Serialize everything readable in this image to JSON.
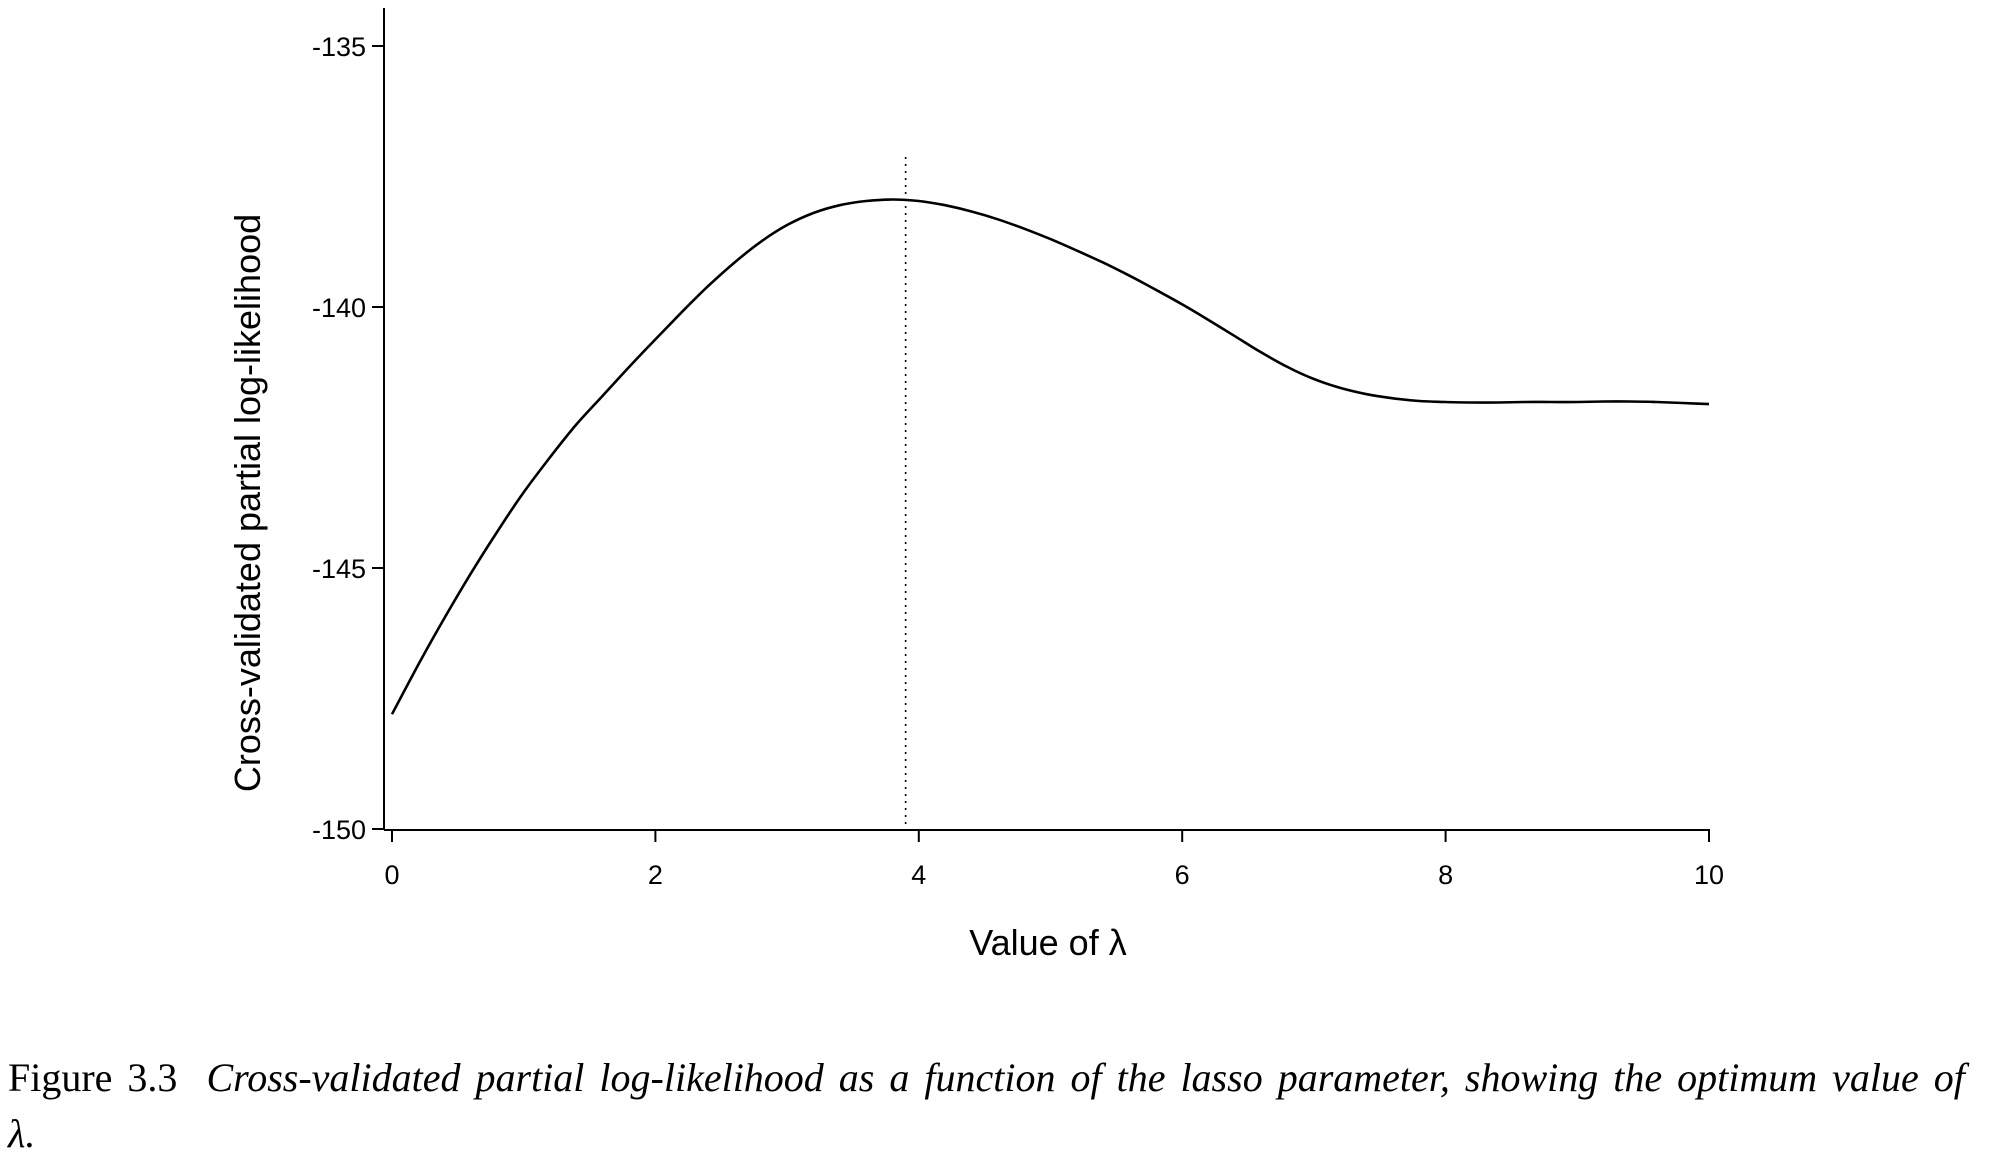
{
  "chart_data": {
    "type": "line",
    "xlabel": "Value of λ",
    "ylabel": "Cross-validated partial log-likelihood",
    "xlim": [
      0,
      10
    ],
    "ylim": [
      -150,
      -134.3
    ],
    "xticks": [
      0,
      2,
      4,
      6,
      8,
      10
    ],
    "yticks": [
      -135,
      -140,
      -145,
      -150
    ],
    "x_tick_labels": [
      "0",
      "2",
      "4",
      "6",
      "8",
      "10"
    ],
    "y_tick_labels": [
      "-135",
      "-140",
      "-145",
      "-150"
    ],
    "grid": false,
    "series": [
      {
        "x": [
          0.0,
          0.2,
          0.4,
          0.6,
          0.8,
          1.0,
          1.2,
          1.4,
          1.6,
          1.8,
          2.0,
          2.2,
          2.4,
          2.6,
          2.8,
          3.0,
          3.2,
          3.4,
          3.6,
          3.8,
          4.0,
          4.2,
          4.4,
          4.6,
          4.8,
          5.0,
          5.2,
          5.4,
          5.6,
          5.8,
          6.0,
          6.2,
          6.4,
          6.6,
          6.8,
          7.0,
          7.2,
          7.4,
          7.6,
          7.8,
          8.0,
          8.2,
          8.4,
          8.6,
          8.8,
          9.0,
          9.2,
          9.4,
          9.6,
          9.8,
          10.0
        ],
        "y": [
          -147.8,
          -146.85,
          -145.95,
          -145.1,
          -144.3,
          -143.55,
          -142.88,
          -142.25,
          -141.7,
          -141.15,
          -140.62,
          -140.1,
          -139.6,
          -139.15,
          -138.75,
          -138.43,
          -138.2,
          -138.05,
          -137.97,
          -137.94,
          -137.97,
          -138.05,
          -138.17,
          -138.32,
          -138.5,
          -138.7,
          -138.92,
          -139.15,
          -139.4,
          -139.67,
          -139.95,
          -140.25,
          -140.56,
          -140.87,
          -141.15,
          -141.38,
          -141.55,
          -141.67,
          -141.75,
          -141.8,
          -141.82,
          -141.83,
          -141.83,
          -141.82,
          -141.82,
          -141.82,
          -141.81,
          -141.81,
          -141.82,
          -141.84,
          -141.86
        ]
      }
    ],
    "reference_line": {
      "x": 3.9,
      "style": "dotted"
    }
  },
  "caption": {
    "label": "Figure 3.3",
    "text": "Cross-validated partial log-likelihood as a function of the lasso parameter, showing the optimum value of λ."
  }
}
